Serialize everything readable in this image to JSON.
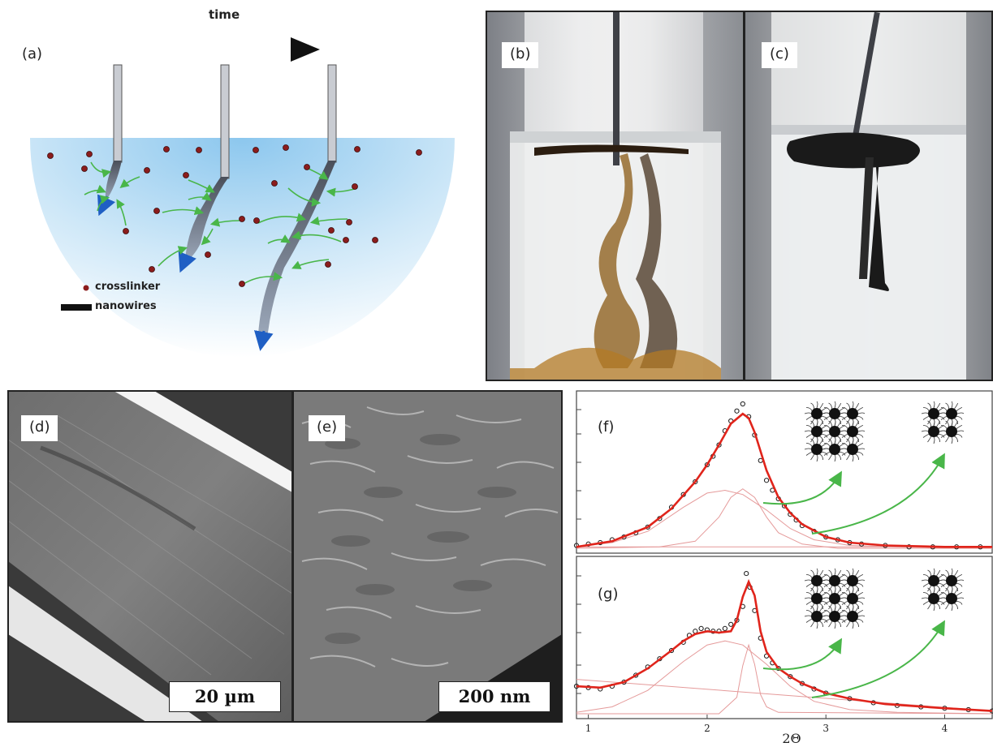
{
  "panels": {
    "a": {
      "label": "(a)",
      "time_label": "time",
      "legend": {
        "crosslinker": "crosslinker",
        "nanowires": "nanowires"
      }
    },
    "b": {
      "label": "(b)"
    },
    "c": {
      "label": "(c)"
    },
    "d": {
      "label": "(d)",
      "scale": "20 µm"
    },
    "e": {
      "label": "(e)",
      "scale": "200 nm"
    },
    "f": {
      "label": "(f)"
    },
    "g": {
      "label": "(g)"
    }
  },
  "colors": {
    "fit": "#e0241b",
    "component": "#e59a9a",
    "arrow": "#49b649",
    "crosslinker": "#8b1c1c",
    "wire_tip": "#1f5fc4",
    "liquid": "#bfe0f5"
  },
  "chart_data": [
    {
      "type": "scatter",
      "panel": "(f)",
      "xlabel": "",
      "ylabel": "",
      "xlim": [
        0.9,
        4.4
      ],
      "ylim": [
        0,
        1.02
      ],
      "x_ticks": [],
      "series": [
        {
          "role": "data",
          "marker": "open-circle",
          "x": [
            0.9,
            1.0,
            1.1,
            1.2,
            1.3,
            1.4,
            1.5,
            1.6,
            1.7,
            1.8,
            1.9,
            2.0,
            2.05,
            2.1,
            2.15,
            2.2,
            2.25,
            2.3,
            2.35,
            2.4,
            2.45,
            2.5,
            2.55,
            2.6,
            2.65,
            2.7,
            2.75,
            2.8,
            2.9,
            3.0,
            3.1,
            3.2,
            3.3,
            3.5,
            3.7,
            3.9,
            4.1,
            4.3
          ],
          "y": [
            0.02,
            0.03,
            0.04,
            0.06,
            0.08,
            0.11,
            0.15,
            0.21,
            0.29,
            0.38,
            0.47,
            0.59,
            0.65,
            0.73,
            0.83,
            0.9,
            0.97,
            1.02,
            0.93,
            0.8,
            0.62,
            0.48,
            0.41,
            0.35,
            0.3,
            0.24,
            0.2,
            0.16,
            0.12,
            0.08,
            0.06,
            0.04,
            0.03,
            0.02,
            0.01,
            0.01,
            0.01,
            0.01
          ]
        },
        {
          "role": "fit",
          "x": [
            0.9,
            1.2,
            1.5,
            1.7,
            1.9,
            2.0,
            2.1,
            2.2,
            2.3,
            2.35,
            2.4,
            2.5,
            2.6,
            2.7,
            2.8,
            3.0,
            3.2,
            3.5,
            4.0,
            4.4
          ],
          "y": [
            0.01,
            0.05,
            0.15,
            0.28,
            0.47,
            0.59,
            0.73,
            0.88,
            0.95,
            0.92,
            0.82,
            0.55,
            0.36,
            0.25,
            0.17,
            0.08,
            0.04,
            0.02,
            0.01,
            0.01
          ]
        },
        {
          "role": "component",
          "x": [
            0.9,
            1.2,
            1.5,
            1.8,
            2.0,
            2.15,
            2.3,
            2.5,
            2.7,
            2.9,
            3.2,
            3.6,
            4.4
          ],
          "y": [
            0.01,
            0.04,
            0.12,
            0.29,
            0.39,
            0.41,
            0.38,
            0.27,
            0.14,
            0.06,
            0.02,
            0.01,
            0.0
          ]
        },
        {
          "role": "component",
          "x": [
            0.9,
            1.6,
            1.9,
            2.1,
            2.2,
            2.3,
            2.4,
            2.5,
            2.6,
            2.8,
            3.1,
            4.4
          ],
          "y": [
            0.0,
            0.01,
            0.05,
            0.22,
            0.36,
            0.42,
            0.36,
            0.22,
            0.11,
            0.03,
            0.0,
            0.0
          ]
        },
        {
          "role": "baseline",
          "x": [
            0.9,
            4.4
          ],
          "y": [
            0.01,
            0.01
          ]
        }
      ]
    },
    {
      "type": "scatter",
      "panel": "(g)",
      "xlabel": "2Θ",
      "ylabel": "",
      "xlim": [
        0.9,
        4.4
      ],
      "ylim": [
        0,
        1.05
      ],
      "x_ticks": [
        1,
        2,
        3,
        4
      ],
      "series": [
        {
          "role": "data",
          "marker": "open-circle",
          "x": [
            0.9,
            1.0,
            1.1,
            1.2,
            1.3,
            1.4,
            1.5,
            1.6,
            1.7,
            1.8,
            1.85,
            1.9,
            1.95,
            2.0,
            2.05,
            2.1,
            2.15,
            2.2,
            2.25,
            2.3,
            2.33,
            2.36,
            2.4,
            2.45,
            2.5,
            2.55,
            2.6,
            2.7,
            2.8,
            2.9,
            3.0,
            3.2,
            3.4,
            3.6,
            3.8,
            4.0,
            4.2,
            4.4
          ],
          "y": [
            0.2,
            0.19,
            0.18,
            0.2,
            0.23,
            0.28,
            0.34,
            0.4,
            0.46,
            0.52,
            0.57,
            0.6,
            0.62,
            0.61,
            0.6,
            0.6,
            0.62,
            0.65,
            0.68,
            0.78,
            1.02,
            0.92,
            0.75,
            0.55,
            0.42,
            0.37,
            0.33,
            0.27,
            0.22,
            0.18,
            0.15,
            0.11,
            0.08,
            0.06,
            0.05,
            0.04,
            0.03,
            0.02
          ]
        },
        {
          "role": "fit",
          "x": [
            0.9,
            1.1,
            1.3,
            1.5,
            1.7,
            1.8,
            1.9,
            2.0,
            2.1,
            2.2,
            2.25,
            2.3,
            2.35,
            2.4,
            2.45,
            2.5,
            2.6,
            2.7,
            2.8,
            3.0,
            3.2,
            3.5,
            4.0,
            4.4
          ],
          "y": [
            0.2,
            0.19,
            0.23,
            0.33,
            0.46,
            0.53,
            0.58,
            0.6,
            0.59,
            0.6,
            0.68,
            0.85,
            0.96,
            0.86,
            0.6,
            0.45,
            0.33,
            0.27,
            0.22,
            0.15,
            0.11,
            0.07,
            0.04,
            0.02
          ]
        },
        {
          "role": "component",
          "x": [
            0.9,
            1.2,
            1.5,
            1.8,
            2.0,
            2.15,
            2.3,
            2.5,
            2.7,
            2.9,
            3.2,
            3.6,
            4.4
          ],
          "y": [
            0.01,
            0.05,
            0.17,
            0.38,
            0.5,
            0.53,
            0.5,
            0.36,
            0.2,
            0.09,
            0.03,
            0.01,
            0.0
          ]
        },
        {
          "role": "component",
          "x": [
            0.9,
            2.1,
            2.25,
            2.3,
            2.35,
            2.4,
            2.45,
            2.5,
            2.6,
            4.4
          ],
          "y": [
            0.0,
            0.0,
            0.12,
            0.35,
            0.5,
            0.36,
            0.14,
            0.05,
            0.01,
            0.0
          ]
        },
        {
          "role": "baseline",
          "x": [
            0.9,
            4.4
          ],
          "y": [
            0.25,
            0.02
          ]
        }
      ]
    }
  ]
}
